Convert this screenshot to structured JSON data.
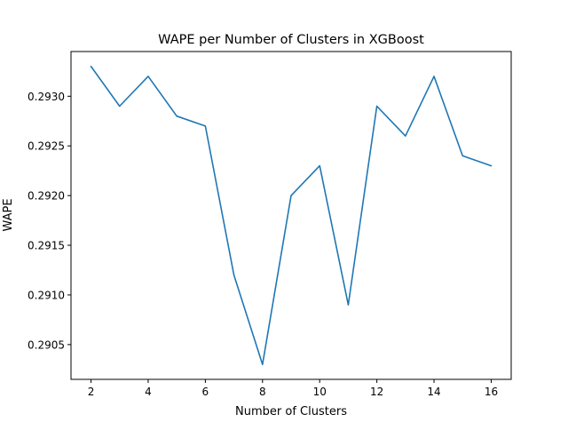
{
  "chart_data": {
    "type": "line",
    "title": "WAPE per Number of Clusters in XGBoost",
    "xlabel": "Number of Clusters",
    "ylabel": "WAPE",
    "x": [
      2,
      3,
      4,
      5,
      6,
      7,
      8,
      9,
      10,
      11,
      12,
      13,
      14,
      15,
      16
    ],
    "series": [
      {
        "values": [
          0.2933,
          0.2929,
          0.2932,
          0.2928,
          0.2927,
          0.2912,
          0.2903,
          0.292,
          0.2923,
          0.2909,
          0.2929,
          0.2926,
          0.2932,
          0.2924,
          0.2923
        ],
        "color": "#1f77b4"
      }
    ],
    "xlim": [
      1.3,
      16.7
    ],
    "ylim": [
      0.29015,
      0.29345
    ],
    "xticks": [
      2,
      4,
      6,
      8,
      10,
      12,
      14,
      16
    ],
    "xtick_labels": [
      "2",
      "4",
      "6",
      "8",
      "10",
      "12",
      "14",
      "16"
    ],
    "yticks": [
      0.2905,
      0.291,
      0.2915,
      0.292,
      0.2925,
      0.293
    ],
    "ytick_labels": [
      "0.2905",
      "0.2910",
      "0.2915",
      "0.2920",
      "0.2925",
      "0.2930"
    ],
    "grid": false,
    "legend": "none"
  }
}
